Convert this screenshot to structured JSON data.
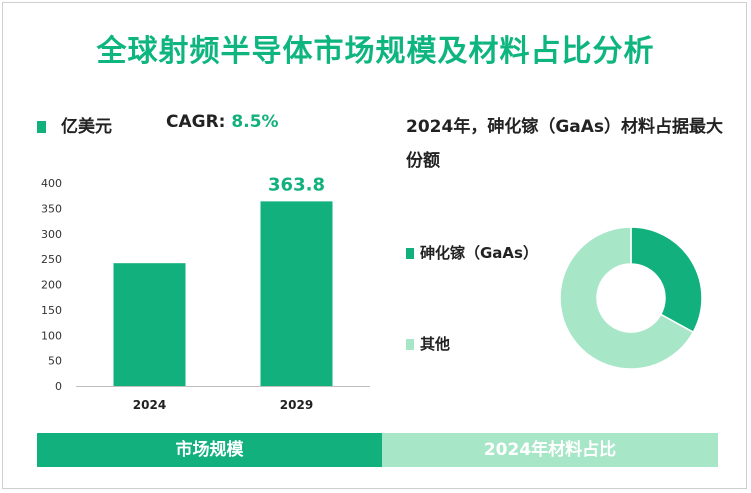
{
  "title": "全球射频半导体市场规模及材料占比分析",
  "left_panel": {
    "unit_label": "亿美元",
    "cagr_label": "CAGR: ",
    "cagr_value": "8.5%"
  },
  "right_panel": {
    "title": "2024年，砷化镓（GaAs）材料占据最大份额",
    "legend": [
      {
        "label": "砷化镓（GaAs）",
        "color": "#12b07d"
      },
      {
        "label": "其他",
        "color": "#a8e6c8"
      }
    ]
  },
  "bottom": {
    "left_label": "市场规模",
    "right_label": "2024年材料占比",
    "left_color": "#12b07d",
    "right_color": "#a8e6c8"
  },
  "chart_data": [
    {
      "type": "bar",
      "categories": [
        "2024",
        "2029"
      ],
      "values": [
        242,
        363.8
      ],
      "value_labels": [
        "",
        "363.8"
      ],
      "ylim": [
        0,
        400
      ],
      "yticks": [
        0,
        50,
        100,
        150,
        200,
        250,
        300,
        350,
        400
      ],
      "grid": false,
      "color": "#12b07d"
    },
    {
      "type": "pie",
      "style": "donut",
      "labels": [
        "砷化镓（GaAs）",
        "其他"
      ],
      "values": [
        33,
        67
      ],
      "colors": [
        "#12b07d",
        "#a8e6c8"
      ]
    }
  ]
}
